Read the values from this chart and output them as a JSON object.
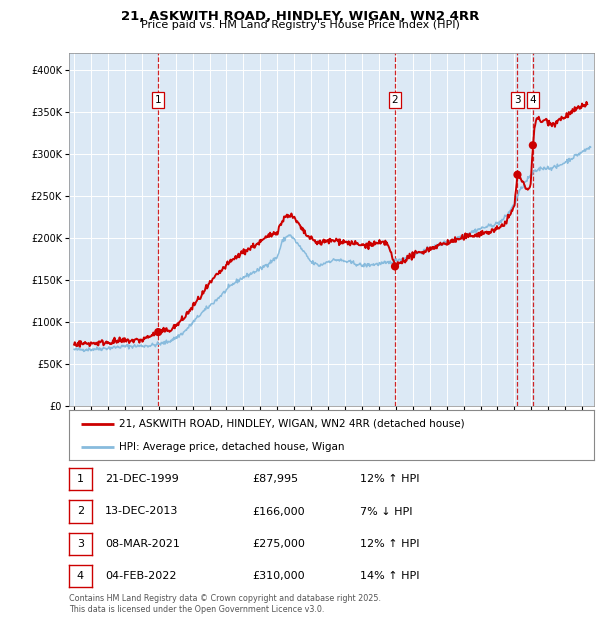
{
  "title": "21, ASKWITH ROAD, HINDLEY, WIGAN, WN2 4RR",
  "subtitle": "Price paid vs. HM Land Registry's House Price Index (HPI)",
  "legend_line1": "21, ASKWITH ROAD, HINDLEY, WIGAN, WN2 4RR (detached house)",
  "legend_line2": "HPI: Average price, detached house, Wigan",
  "hpi_color": "#88bbdd",
  "price_color": "#cc0000",
  "background_color": "#dce9f5",
  "table_rows": [
    {
      "num": "1",
      "date": "21-DEC-1999",
      "price": "£87,995",
      "hpi": "12% ↑ HPI"
    },
    {
      "num": "2",
      "date": "13-DEC-2013",
      "price": "£166,000",
      "hpi": "7% ↓ HPI"
    },
    {
      "num": "3",
      "date": "08-MAR-2021",
      "price": "£275,000",
      "hpi": "12% ↑ HPI"
    },
    {
      "num": "4",
      "date": "04-FEB-2022",
      "price": "£310,000",
      "hpi": "14% ↑ HPI"
    }
  ],
  "footer": "Contains HM Land Registry data © Crown copyright and database right 2025.\nThis data is licensed under the Open Government Licence v3.0.",
  "sales": [
    {
      "date_num": 1999.97,
      "price": 87995,
      "label": "1"
    },
    {
      "date_num": 2013.95,
      "price": 166000,
      "label": "2"
    },
    {
      "date_num": 2021.18,
      "price": 275000,
      "label": "3"
    },
    {
      "date_num": 2022.09,
      "price": 310000,
      "label": "4"
    }
  ],
  "ylim": [
    0,
    420000
  ],
  "xlim_start": 1994.7,
  "xlim_end": 2025.7
}
